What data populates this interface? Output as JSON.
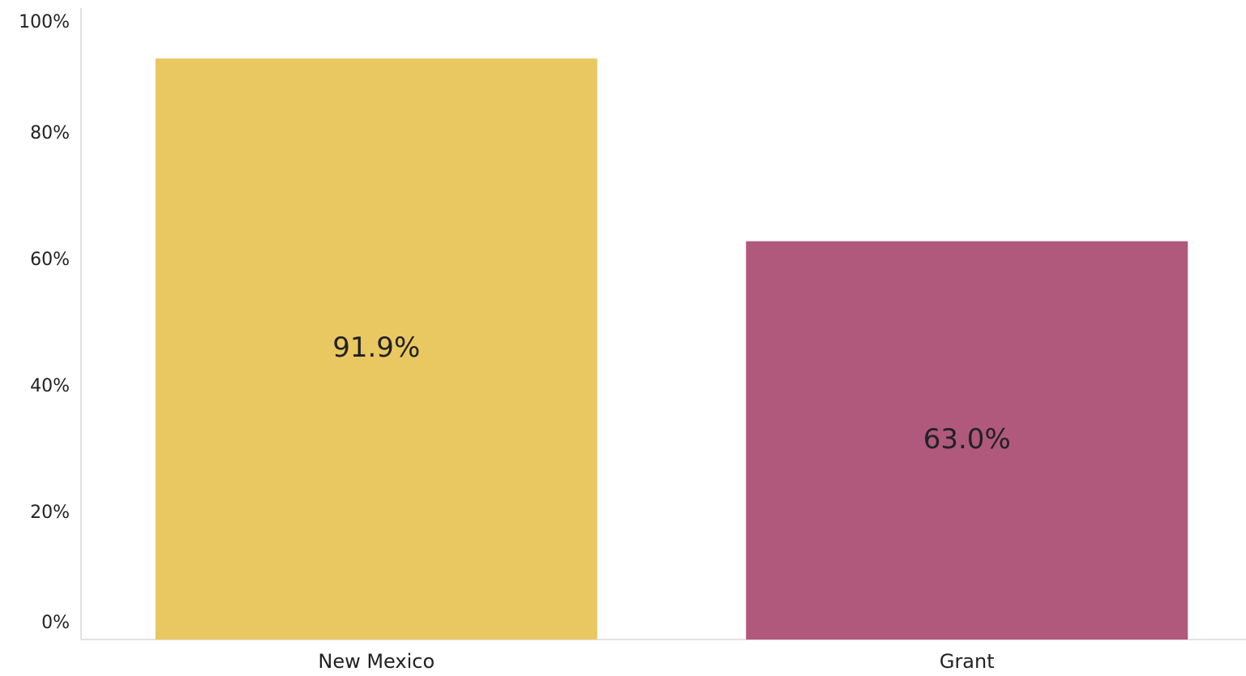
{
  "chart_data": {
    "type": "bar",
    "categories": [
      "New Mexico",
      "Grant"
    ],
    "values": [
      91.9,
      63.0
    ],
    "value_labels": [
      "91.9%",
      "63.0%"
    ],
    "colors": [
      "#e9c862",
      "#b0597c"
    ],
    "ylim": [
      0,
      100
    ],
    "yticks": [
      {
        "value": 0,
        "label": "0%"
      },
      {
        "value": 20,
        "label": "20%"
      },
      {
        "value": 40,
        "label": "40%"
      },
      {
        "value": 60,
        "label": "60%"
      },
      {
        "value": 80,
        "label": "80%"
      },
      {
        "value": 100,
        "label": "100%"
      }
    ],
    "grid": false
  }
}
